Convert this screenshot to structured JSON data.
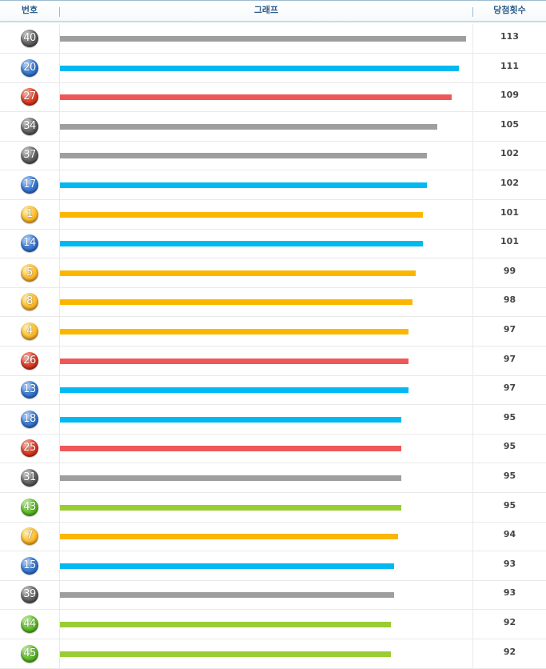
{
  "header": {
    "number": "번호",
    "graph": "그래프",
    "count": "당첨횟수"
  },
  "colors": {
    "yellow": "#FBB600",
    "blue": "#00B9F1",
    "red": "#EF5858",
    "gray": "#9E9E9E",
    "green": "#9ACC33"
  },
  "chart_data": {
    "type": "bar",
    "orientation": "horizontal",
    "categories": [
      "40",
      "20",
      "27",
      "34",
      "37",
      "17",
      "1",
      "14",
      "5",
      "8",
      "4",
      "26",
      "13",
      "18",
      "25",
      "31",
      "43",
      "7",
      "15",
      "39",
      "44",
      "45"
    ],
    "values": [
      113,
      111,
      109,
      105,
      102,
      102,
      101,
      101,
      99,
      98,
      97,
      97,
      97,
      95,
      95,
      95,
      95,
      94,
      93,
      93,
      92,
      92
    ],
    "colors": [
      "gray",
      "blue",
      "red",
      "gray",
      "gray",
      "blue",
      "yellow",
      "blue",
      "yellow",
      "yellow",
      "yellow",
      "red",
      "blue",
      "blue",
      "red",
      "gray",
      "green",
      "yellow",
      "blue",
      "gray",
      "green",
      "green"
    ],
    "xlim": [
      0,
      113
    ]
  }
}
